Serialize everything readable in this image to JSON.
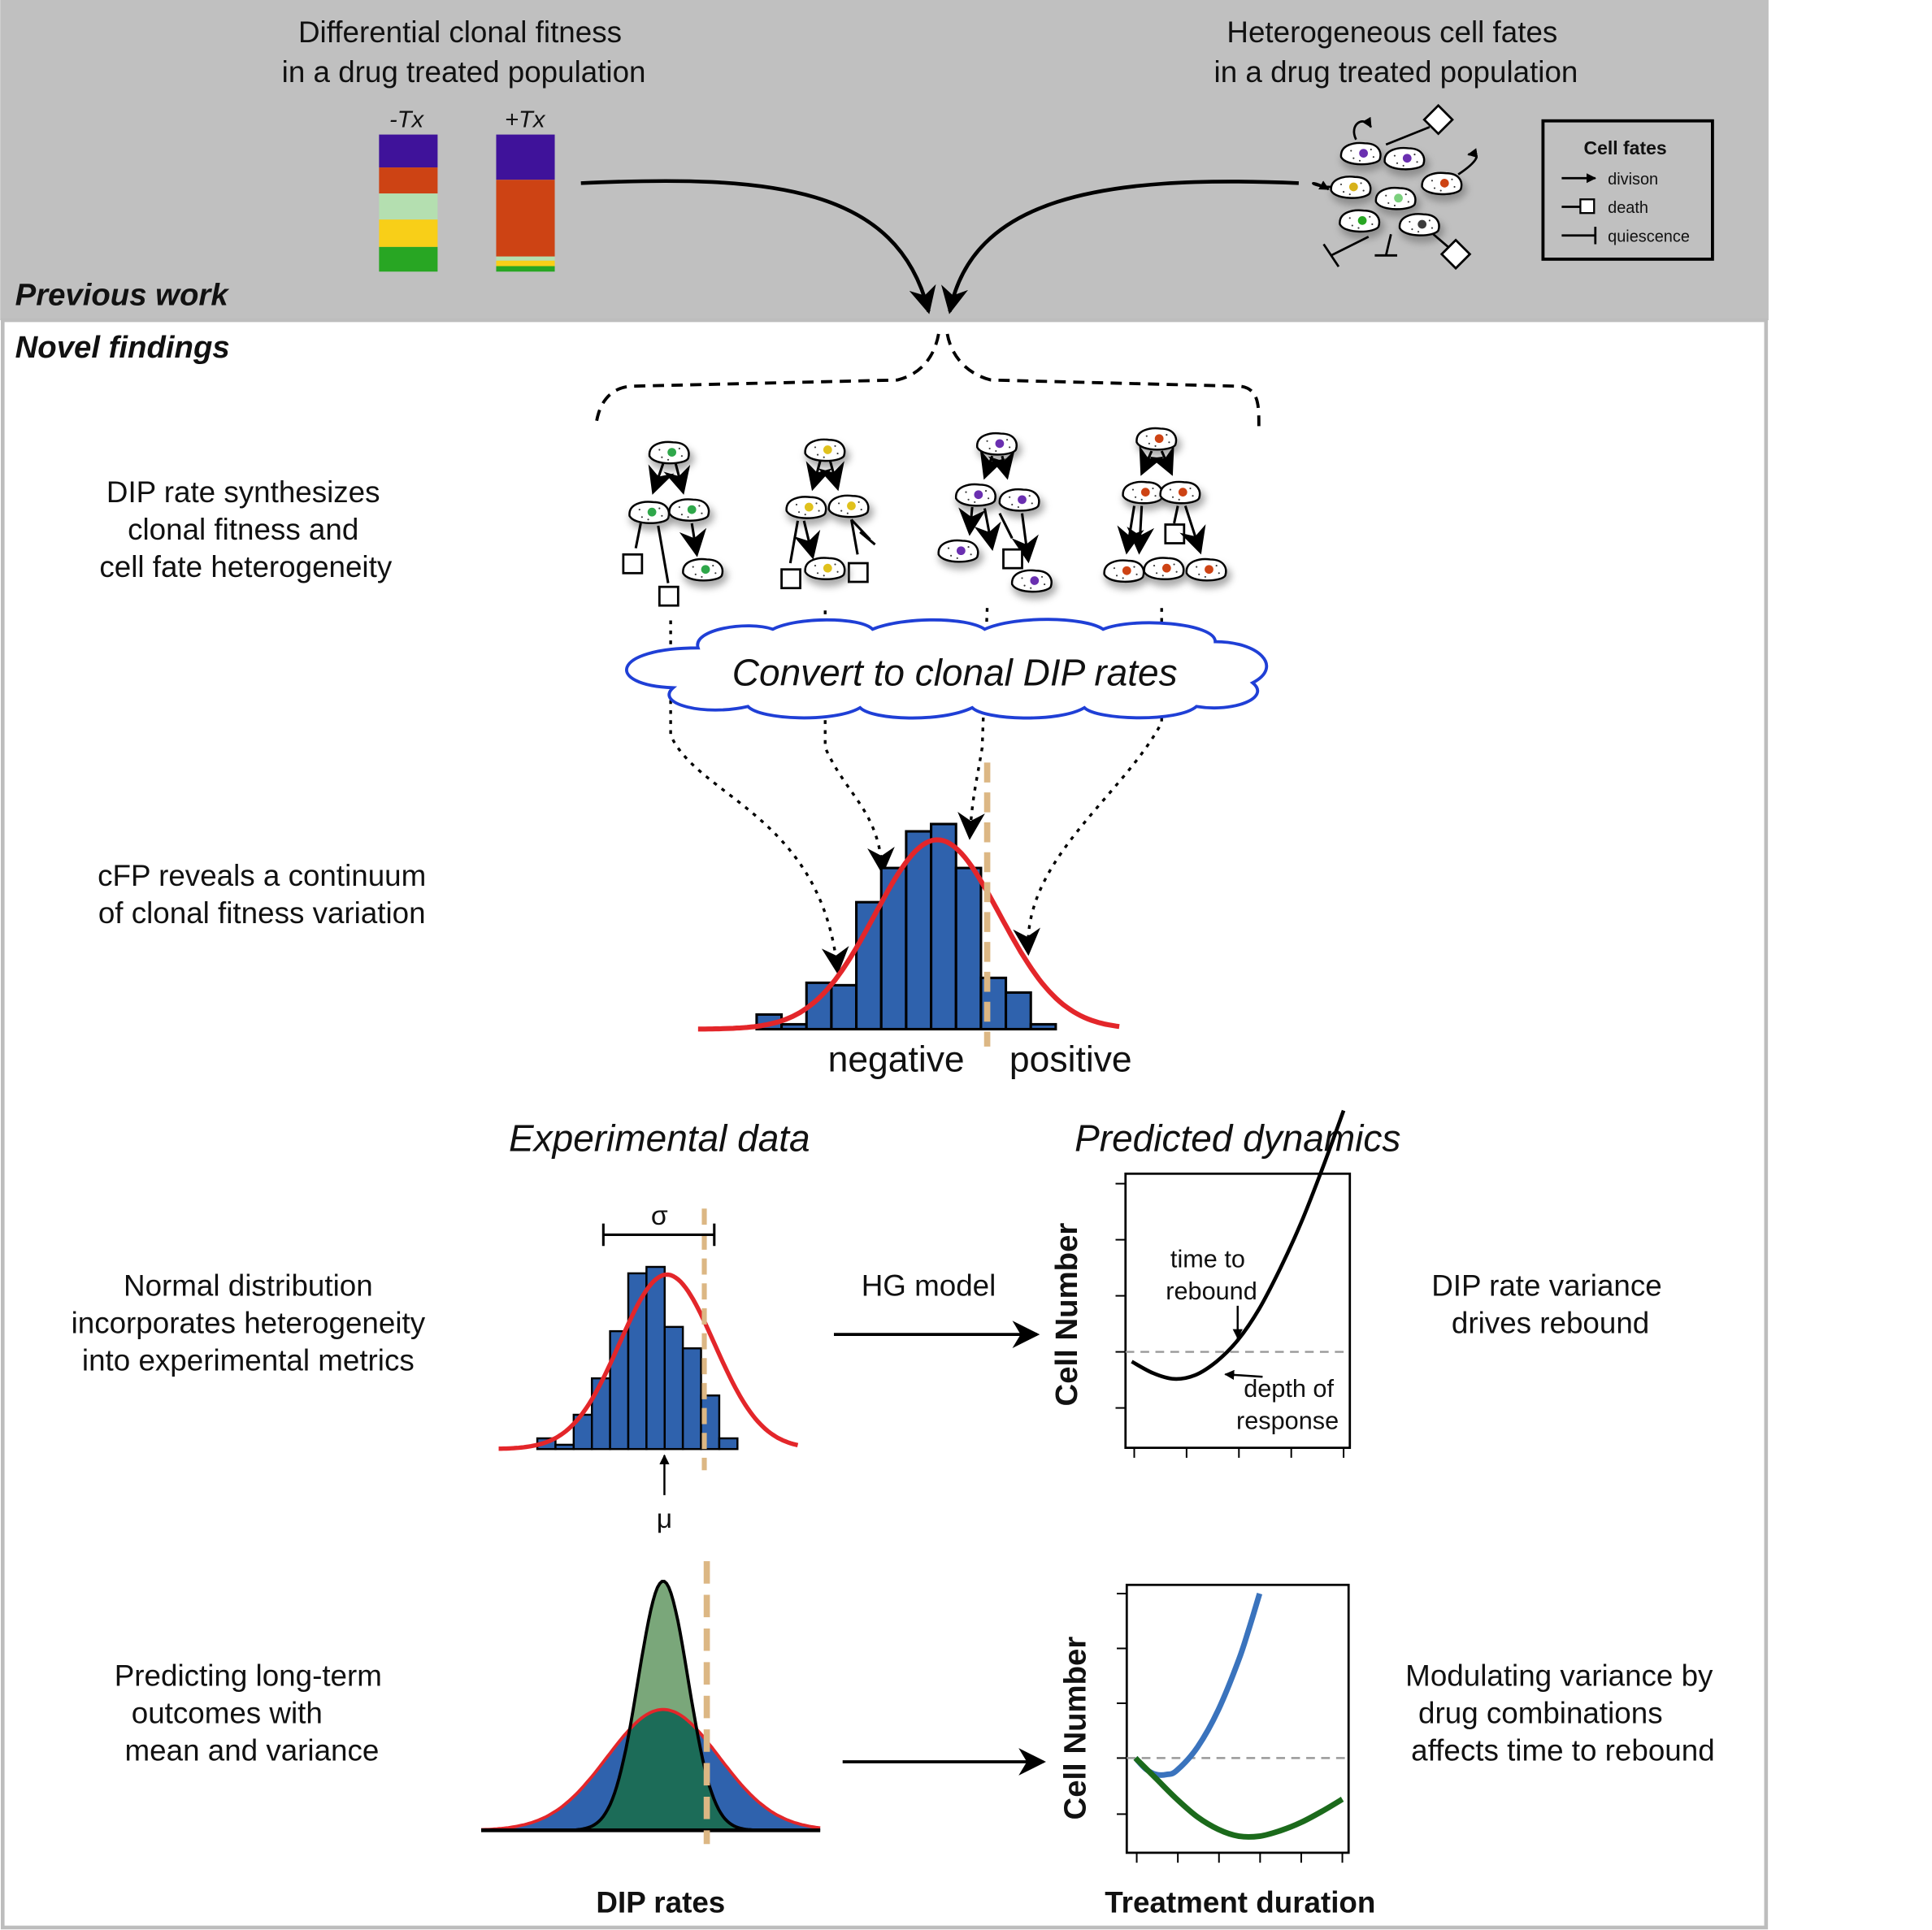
{
  "top": {
    "section_label": "Previous work",
    "left_title": [
      "Differential clonal fitness",
      "in a drug treated population"
    ],
    "bar_labels": [
      "-Tx",
      "+Tx"
    ],
    "bar_segments": {
      "minus_tx": [
        {
          "color": "#3f129a",
          "fraction": 0.24
        },
        {
          "color": "#cd4314",
          "fraction": 0.19
        },
        {
          "color": "#b4dfb0",
          "fraction": 0.19
        },
        {
          "color": "#f8cf18",
          "fraction": 0.2
        },
        {
          "color": "#28a623",
          "fraction": 0.18
        }
      ],
      "plus_tx": [
        {
          "color": "#3f129a",
          "fraction": 0.33
        },
        {
          "color": "#cd4314",
          "fraction": 0.56
        },
        {
          "color": "#b4dfb0",
          "fraction": 0.03
        },
        {
          "color": "#f8cf18",
          "fraction": 0.04
        },
        {
          "color": "#28a623",
          "fraction": 0.04
        }
      ]
    },
    "right_title": [
      "Heterogeneous cell fates",
      "in a drug treated population"
    ],
    "legend": {
      "title": "Cell fates",
      "items": [
        "divison",
        "death",
        "quiescence"
      ]
    }
  },
  "novel": {
    "section_label": "Novel findings",
    "row1_text": [
      "DIP rate synthesizes",
      "clonal fitness and",
      "cell fate heterogeneity"
    ],
    "cloud_text": "Convert to clonal DIP rates",
    "row2_text": [
      "cFP reveals a continuum",
      "of clonal fitness variation"
    ],
    "hist_labels": [
      "negative",
      "positive"
    ],
    "experimental_title": "Experimental data",
    "predicted_title": "Predicted dynamics",
    "row3_text": [
      "Normal distribution",
      "incorporates heterogeneity",
      "into experimental metrics"
    ],
    "sigma": "σ",
    "mu": "μ",
    "hg_model": "HG model",
    "cell_number": "Cell Number",
    "annot_rebound": [
      "time to",
      "rebound"
    ],
    "annot_depth": [
      "depth of",
      "response"
    ],
    "row3_right": [
      "DIP rate variance",
      "drives rebound"
    ],
    "row4_text": [
      "Predicting long-term",
      "outcomes with",
      "mean and variance"
    ],
    "row4_right": [
      "Modulating variance by",
      "drug combinations",
      "affects time to rebound"
    ],
    "xlabel_left": "DIP rates",
    "xlabel_right": "Treatment duration"
  },
  "colors": {
    "header_bg": "#c0c0c0",
    "hist_blue": "#2f62ad",
    "normal_red": "#e3262a",
    "dashed_tan": "#dcb784",
    "cloud_blue": "#1f3fd6",
    "narrow_green": "#7aa77a",
    "overlap_green": "#1c6c58",
    "curve_blue": "#3a73bd",
    "curve_green": "#1b6a1b"
  },
  "chart_data": [
    {
      "type": "bar",
      "title": "",
      "xlabel": "",
      "ylabel": "",
      "categories": [
        "1",
        "2",
        "3",
        "4",
        "5",
        "6",
        "7",
        "8",
        "9",
        "10",
        "11",
        "12"
      ],
      "values": [
        0.06,
        0.02,
        0.19,
        0.18,
        0.52,
        0.66,
        0.81,
        0.84,
        0.66,
        0.21,
        0.15,
        0.02
      ],
      "overlay": "normal curve",
      "threshold_label_left": "negative",
      "threshold_label_right": "positive"
    },
    {
      "type": "bar",
      "title": "Experimental data",
      "xlabel": "",
      "ylabel": "",
      "categories": [
        "1",
        "2",
        "3",
        "4",
        "5",
        "6",
        "7",
        "8",
        "9",
        "10",
        "11",
        "12"
      ],
      "values": [
        0.05,
        0.02,
        0.16,
        0.33,
        0.55,
        0.82,
        0.85,
        0.57,
        0.47,
        0.25,
        0.05,
        0.0
      ],
      "annotations": [
        "σ",
        "μ"
      ]
    },
    {
      "type": "line",
      "title": "Predicted dynamics",
      "xlabel": "",
      "ylabel": "Cell Number",
      "series": [
        {
          "x": [
            0,
            0.1,
            0.2,
            0.3,
            0.4,
            0.5,
            0.6,
            0.7,
            0.8,
            0.9,
            1.0
          ],
          "y": [
            -0.05,
            -0.11,
            -0.14,
            -0.12,
            -0.05,
            0.06,
            0.22,
            0.43,
            0.67,
            0.95,
            1.25
          ]
        }
      ],
      "annotations": [
        "time to rebound",
        "depth of response"
      ]
    },
    {
      "type": "line",
      "title": "",
      "xlabel": "Treatment duration",
      "ylabel": "Cell Number",
      "series": [
        {
          "x": [
            0,
            0.05,
            0.1,
            0.15,
            0.2,
            0.3,
            0.4,
            0.5,
            0.55,
            0.6
          ],
          "y": [
            0.0,
            -0.08,
            -0.12,
            -0.12,
            -0.09,
            0.08,
            0.35,
            0.72,
            0.95,
            1.2
          ]
        },
        {
          "x": [
            0,
            0.1,
            0.2,
            0.3,
            0.4,
            0.5,
            0.6,
            0.7,
            0.8,
            0.9,
            1.0
          ],
          "y": [
            0.0,
            -0.15,
            -0.3,
            -0.43,
            -0.52,
            -0.57,
            -0.57,
            -0.53,
            -0.47,
            -0.39,
            -0.3
          ]
        }
      ]
    }
  ]
}
